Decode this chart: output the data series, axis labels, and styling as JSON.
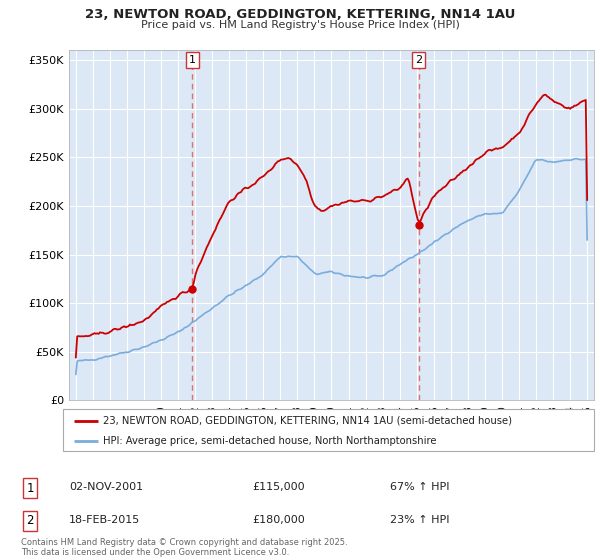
{
  "title": "23, NEWTON ROAD, GEDDINGTON, KETTERING, NN14 1AU",
  "subtitle": "Price paid vs. HM Land Registry's House Price Index (HPI)",
  "legend_line1": "23, NEWTON ROAD, GEDDINGTON, KETTERING, NN14 1AU (semi-detached house)",
  "legend_line2": "HPI: Average price, semi-detached house, North Northamptonshire",
  "sale1_date": 2001.84,
  "sale1_price": 115000,
  "sale1_label": "1",
  "sale1_text": "02-NOV-2001",
  "sale1_pct": "67% ↑ HPI",
  "sale2_date": 2015.12,
  "sale2_price": 180000,
  "sale2_label": "2",
  "sale2_text": "18-FEB-2015",
  "sale2_pct": "23% ↑ HPI",
  "red_color": "#cc0000",
  "blue_color": "#7aacdc",
  "dashed_color": "#e07070",
  "background_color": "#ffffff",
  "chart_bg_color": "#dce8f5",
  "grid_color": "#ffffff",
  "ylim": [
    0,
    360000
  ],
  "xlim_start": 1994.6,
  "xlim_end": 2025.4,
  "yticks": [
    0,
    50000,
    100000,
    150000,
    200000,
    250000,
    300000,
    350000
  ],
  "ytick_labels": [
    "£0",
    "£50K",
    "£100K",
    "£150K",
    "£200K",
    "£250K",
    "£300K",
    "£350K"
  ],
  "footer": "Contains HM Land Registry data © Crown copyright and database right 2025.\nThis data is licensed under the Open Government Licence v3.0.",
  "sale_marker_color": "#cc0000"
}
